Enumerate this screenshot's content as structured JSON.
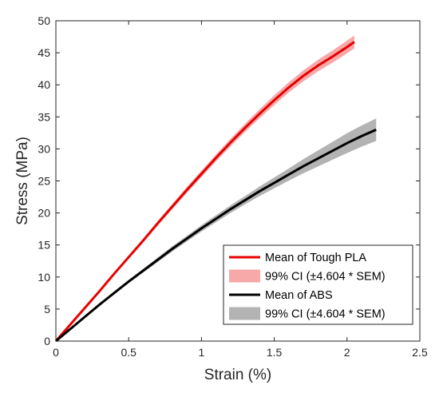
{
  "chart_data": {
    "type": "line",
    "xlabel": "Strain (%)",
    "ylabel": "Stress (MPa)",
    "xlim": [
      0,
      2.5
    ],
    "ylim": [
      0,
      50
    ],
    "xticks": [
      "0",
      "0.5",
      "1",
      "1.5",
      "2",
      "2.5"
    ],
    "yticks": [
      "0",
      "5",
      "10",
      "15",
      "20",
      "25",
      "30",
      "35",
      "40",
      "45",
      "50"
    ],
    "grid": false,
    "legend_position": "bottom-right",
    "series": [
      {
        "name": "Mean of Tough PLA",
        "color": "#e60000",
        "band_name": "99% CI (±4.604 * SEM)",
        "band_color": "#f7a8a8",
        "x": [
          0,
          0.1,
          0.2,
          0.3,
          0.4,
          0.5,
          0.6,
          0.7,
          0.8,
          0.9,
          1.0,
          1.1,
          1.2,
          1.3,
          1.4,
          1.5,
          1.6,
          1.7,
          1.8,
          1.9,
          2.0,
          2.05
        ],
        "y": [
          0,
          2.6,
          5.2,
          7.8,
          10.5,
          13.1,
          15.7,
          18.4,
          21.0,
          23.6,
          26.1,
          28.6,
          31.0,
          33.3,
          35.5,
          37.6,
          39.6,
          41.4,
          43.0,
          44.4,
          45.9,
          46.7
        ],
        "lower": [
          0,
          2.55,
          5.1,
          7.65,
          10.3,
          12.85,
          15.4,
          18.05,
          20.6,
          23.15,
          25.6,
          28.05,
          30.4,
          32.65,
          34.8,
          36.85,
          38.8,
          40.55,
          42.1,
          43.45,
          44.9,
          45.7
        ],
        "upper": [
          0,
          2.65,
          5.3,
          7.95,
          10.7,
          13.35,
          16.0,
          18.75,
          21.4,
          24.05,
          26.6,
          29.15,
          31.6,
          33.95,
          36.2,
          38.35,
          40.4,
          42.25,
          43.9,
          45.35,
          46.9,
          47.7
        ]
      },
      {
        "name": "Mean of ABS",
        "color": "#000000",
        "band_name": "99% CI (±4.604 * SEM)",
        "band_color": "#b3b3b3",
        "x": [
          0,
          0.1,
          0.2,
          0.3,
          0.4,
          0.5,
          0.6,
          0.7,
          0.8,
          0.9,
          1.0,
          1.1,
          1.2,
          1.3,
          1.4,
          1.5,
          1.6,
          1.7,
          1.8,
          1.9,
          2.0,
          2.1,
          2.2
        ],
        "y": [
          0,
          1.9,
          3.8,
          5.7,
          7.5,
          9.3,
          11.0,
          12.7,
          14.4,
          16.0,
          17.6,
          19.1,
          20.6,
          22.0,
          23.4,
          24.7,
          26.0,
          27.3,
          28.5,
          29.7,
          30.9,
          32.0,
          33.0
        ],
        "lower": [
          0,
          1.85,
          3.7,
          5.55,
          7.3,
          9.05,
          10.7,
          12.35,
          14.0,
          15.55,
          17.1,
          18.55,
          20.0,
          21.35,
          22.65,
          23.85,
          25.05,
          26.2,
          27.25,
          28.3,
          29.35,
          30.35,
          31.25
        ],
        "upper": [
          0,
          1.95,
          3.9,
          5.85,
          7.7,
          9.55,
          11.3,
          13.05,
          14.8,
          16.45,
          18.1,
          19.65,
          21.2,
          22.65,
          24.15,
          25.55,
          26.95,
          28.4,
          29.75,
          31.1,
          32.45,
          33.65,
          34.75
        ]
      }
    ]
  }
}
